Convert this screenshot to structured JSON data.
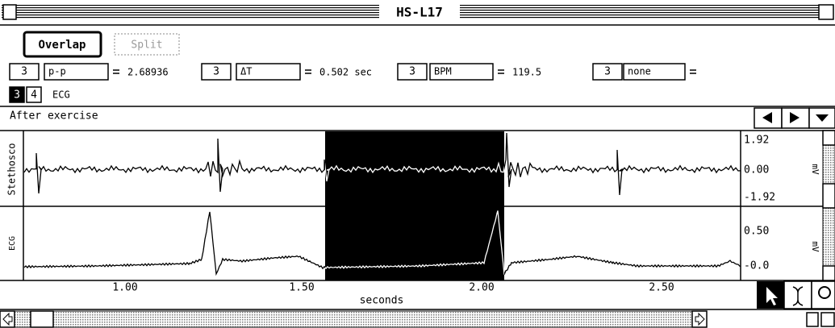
{
  "window": {
    "title": "HS-L17"
  },
  "toolbar": {
    "buttons": [
      "Overlap",
      "Split"
    ]
  },
  "measurements": [
    {
      "channel": "3",
      "type": "p-p",
      "value": "2.68936"
    },
    {
      "channel": "3",
      "type": "ΔT",
      "value": "0.502 sec"
    },
    {
      "channel": "3",
      "type": "BPM",
      "value": "119.5"
    },
    {
      "channel": "3",
      "type": "none"
    }
  ],
  "channel_selector": {
    "channels": [
      "3",
      "4"
    ],
    "label": "ECG"
  },
  "journal": "After exercise",
  "plots": [
    {
      "label": "Stethosco",
      "yticks": [
        "1.92",
        "0.00",
        "-1.92"
      ],
      "unit": "mV"
    },
    {
      "label": "ECG",
      "yticks": [
        "0.50",
        "-0.0"
      ],
      "unit": "mV"
    }
  ],
  "x_axis": {
    "ticks": [
      "1.00",
      "1.50",
      "2.00",
      "2.50"
    ],
    "label": "seconds"
  }
}
